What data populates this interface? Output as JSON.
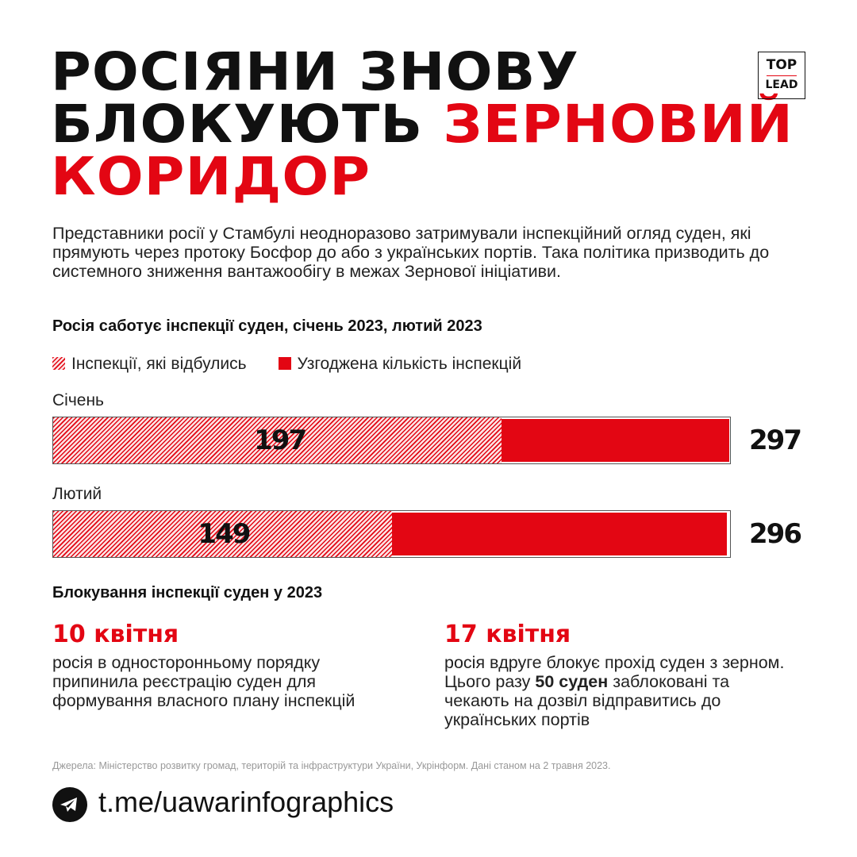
{
  "title": {
    "line1": "РОСІЯНИ ЗНОВУ",
    "line2_black": "БЛОКУЮТЬ",
    "line2_red": "ЗЕРНОВИЙ",
    "line3_red": "КОРИДОР"
  },
  "logo": {
    "top": "TOP",
    "bottom": "LEAD"
  },
  "intro": "Представники росії у Стамбулі неодноразово затримували інспекційний огляд суден, які прямують через протоку Босфор до або з українських портів. Така політика призводить до системного зниження вантажообігу в межах Зернової ініціативи.",
  "chart_data": {
    "type": "bar",
    "title": "Росія саботує інспекції суден, січень 2023, лютий 2023",
    "categories": [
      "Січень",
      "Лютий"
    ],
    "series": [
      {
        "name": "Інспекції, які відбулись",
        "values": [
          197,
          149
        ]
      },
      {
        "name": "Узгоджена кількість інспекцій",
        "values": [
          297,
          296
        ]
      }
    ],
    "colors": {
      "hatched": "#e30613",
      "solid": "#e30613"
    },
    "orientation": "horizontal",
    "legend": "top-left"
  },
  "blocking": {
    "title": "Блокування інспекції суден у 2023",
    "events": [
      {
        "date": "10 квітня",
        "text": "росія в односторонньому порядку припинила реєстрацію суден для формування власного плану інспекцій"
      },
      {
        "date": "17 квітня",
        "text_before": "росія вдруге блокує прохід суден з зерном. Цього разу ",
        "text_bold": "50 суден",
        "text_after": " заблоковані та чекають на дозвіл відправитись до українських портів"
      }
    ]
  },
  "source": "Джерела: Міністерство розвитку громад, територій та інфраструктури України, Укрінформ. Дані станом на 2 травня 2023.",
  "footer": {
    "icon": "telegram-icon",
    "link": "t.me/uawarinfographics"
  }
}
